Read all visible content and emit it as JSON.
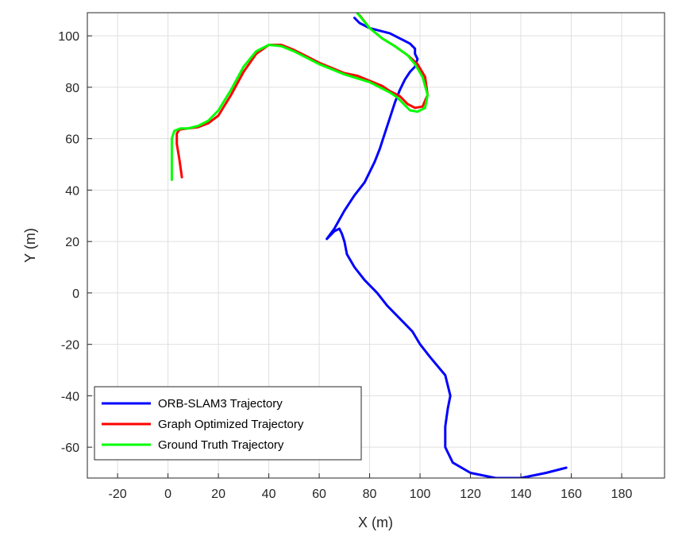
{
  "chart_data": {
    "type": "line",
    "xlabel": "X (m)",
    "ylabel": "Y (m)",
    "xlim": [
      -32,
      197
    ],
    "ylim": [
      -72,
      109
    ],
    "xticks": [
      -20,
      0,
      20,
      40,
      60,
      80,
      100,
      120,
      140,
      160,
      180
    ],
    "yticks": [
      -60,
      -40,
      -20,
      0,
      20,
      40,
      60,
      80,
      100
    ],
    "grid": true,
    "legend_position": "bottom-left",
    "series": [
      {
        "name": "ORB-SLAM3 Trajectory",
        "color": "#0000ff",
        "x": [
          158,
          150,
          140,
          130,
          120,
          113,
          110,
          110,
          111,
          112,
          110,
          104,
          100,
          97,
          92,
          87,
          83,
          78,
          74,
          71,
          70,
          69,
          68,
          66,
          63,
          66,
          70,
          74,
          78,
          80,
          82,
          84,
          86,
          88,
          90,
          92,
          94,
          96,
          98,
          99,
          98,
          98,
          96,
          92,
          88,
          84,
          80,
          76,
          74
        ],
        "y": [
          -68,
          -70,
          -72,
          -72,
          -70,
          -66,
          -60,
          -52,
          -45,
          -40,
          -32,
          -25,
          -20,
          -15,
          -10,
          -5,
          0,
          5,
          10,
          15,
          20,
          23,
          25,
          24,
          21,
          25,
          32,
          38,
          43,
          47,
          51,
          56,
          62,
          68,
          74,
          79,
          83,
          86,
          88,
          91,
          93,
          95,
          97,
          99,
          101,
          102,
          103,
          105,
          107
        ]
      },
      {
        "name": "Graph Optimized Trajectory",
        "color": "#ff0000",
        "x": [
          5.5,
          4.5,
          3.5,
          3.5,
          4.5,
          8,
          12,
          16,
          20,
          25,
          30,
          35,
          40,
          45,
          50,
          55,
          60,
          65,
          70,
          75,
          80,
          85,
          88,
          92,
          95,
          98,
          101,
          103,
          102,
          99,
          95,
          90,
          85,
          80,
          76
        ],
        "y": [
          45,
          52,
          58,
          62,
          63.5,
          64,
          64.5,
          66,
          69,
          77,
          86,
          93,
          96.5,
          96.5,
          94.5,
          92,
          89.5,
          87.5,
          85.5,
          84.5,
          82.5,
          80.5,
          78.5,
          76.5,
          73.5,
          72,
          72.5,
          77,
          84,
          89,
          92.5,
          96,
          99,
          103,
          108
        ]
      },
      {
        "name": "Ground Truth Trajectory",
        "color": "#00ff00",
        "x": [
          1.5,
          1.5,
          1.5,
          2.5,
          5,
          8,
          12,
          16,
          20,
          25,
          30,
          35,
          40,
          45,
          50,
          55,
          60,
          65,
          70,
          75,
          80,
          85,
          88,
          91,
          94,
          96,
          99,
          102,
          103,
          101,
          98,
          95,
          90,
          85,
          80,
          75
        ],
        "y": [
          44,
          53,
          60,
          63,
          64,
          64,
          65,
          67,
          71,
          79,
          88,
          94,
          96.5,
          96,
          94,
          91.5,
          89,
          87,
          85,
          83.5,
          82,
          79.5,
          78,
          76,
          73,
          71,
          70.5,
          72,
          77,
          84,
          89,
          92.5,
          96,
          99,
          103,
          109
        ]
      }
    ]
  }
}
